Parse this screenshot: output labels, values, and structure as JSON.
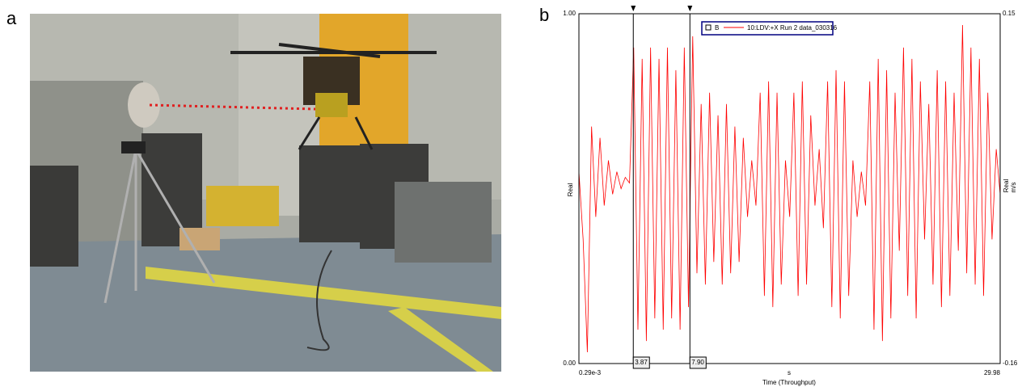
{
  "panel_labels": [
    "a",
    "b"
  ],
  "chart_data": {
    "type": "line",
    "legend_marker": "B",
    "x_unit": "s",
    "xlabel": "Time (Throughput)",
    "ylabel": "Real",
    "y2label": "Real",
    "y2unit": "m/s",
    "xlim": [
      0.00029,
      29.98
    ],
    "xticks": [
      {
        "value": 0.00029,
        "label": "0.29e-3"
      },
      29.98
    ],
    "ylim": [
      0,
      1
    ],
    "yticks": [
      {
        "value": 0,
        "label": "0.00"
      },
      {
        "value": 1,
        "label": "1.00"
      }
    ],
    "y2lim": [
      -0.16,
      0.15
    ],
    "y2ticks": [
      -0.16,
      0.15
    ],
    "cursors": [
      {
        "value": 3.87,
        "label": "3.87"
      },
      {
        "value": 7.9,
        "label": "7.90"
      }
    ],
    "x": [
      0.00029,
      0.3,
      0.6,
      0.9,
      1.2,
      1.5,
      1.8,
      2.1,
      2.4,
      2.7,
      3.0,
      3.3,
      3.6,
      3.9,
      4.2,
      4.5,
      4.8,
      5.1,
      5.4,
      5.7,
      6.0,
      6.3,
      6.6,
      6.9,
      7.2,
      7.5,
      7.8,
      8.1,
      8.4,
      8.7,
      9.0,
      9.3,
      9.6,
      9.9,
      10.2,
      10.5,
      10.8,
      11.1,
      11.4,
      11.7,
      12.0,
      12.3,
      12.6,
      12.9,
      13.2,
      13.5,
      13.8,
      14.1,
      14.4,
      14.7,
      15.0,
      15.3,
      15.6,
      15.9,
      16.2,
      16.5,
      16.8,
      17.1,
      17.4,
      17.7,
      18.0,
      18.3,
      18.6,
      18.9,
      19.2,
      19.5,
      19.8,
      20.1,
      20.4,
      20.7,
      21.0,
      21.3,
      21.6,
      21.9,
      22.2,
      22.5,
      22.8,
      23.1,
      23.4,
      23.7,
      24.0,
      24.3,
      24.6,
      24.9,
      25.2,
      25.5,
      25.8,
      26.1,
      26.4,
      26.7,
      27.0,
      27.3,
      27.6,
      27.9,
      28.2,
      28.5,
      28.8,
      29.1,
      29.4,
      29.7,
      29.98
    ],
    "series": [
      {
        "name": "10:LDV:+X  Run 2  data_030316",
        "color": "#ff0000",
        "axis": "y2",
        "values": [
          0.01,
          -0.05,
          -0.15,
          0.05,
          -0.03,
          0.04,
          -0.02,
          0.02,
          -0.01,
          0.01,
          -0.005,
          0.005,
          0.0,
          0.12,
          -0.13,
          0.11,
          -0.14,
          0.12,
          -0.12,
          0.11,
          -0.13,
          0.12,
          -0.12,
          0.1,
          -0.13,
          0.12,
          -0.11,
          0.13,
          -0.08,
          0.07,
          -0.09,
          0.08,
          -0.07,
          0.06,
          -0.09,
          0.07,
          -0.08,
          0.05,
          -0.07,
          0.04,
          -0.03,
          0.02,
          -0.02,
          0.08,
          -0.1,
          0.09,
          -0.11,
          0.08,
          -0.09,
          0.02,
          -0.03,
          0.08,
          -0.1,
          0.09,
          -0.09,
          0.06,
          -0.02,
          0.03,
          -0.04,
          0.09,
          -0.11,
          0.1,
          -0.12,
          0.09,
          -0.1,
          0.02,
          -0.03,
          0.01,
          -0.02,
          0.09,
          -0.13,
          0.11,
          -0.14,
          0.1,
          -0.12,
          0.08,
          -0.06,
          0.12,
          -0.1,
          0.11,
          -0.12,
          0.09,
          -0.05,
          0.07,
          -0.09,
          0.1,
          -0.11,
          0.09,
          -0.1,
          0.08,
          -0.06,
          0.14,
          -0.08,
          0.12,
          -0.09,
          0.11,
          -0.1,
          0.08,
          -0.05,
          0.03,
          -0.01
        ]
      }
    ]
  }
}
